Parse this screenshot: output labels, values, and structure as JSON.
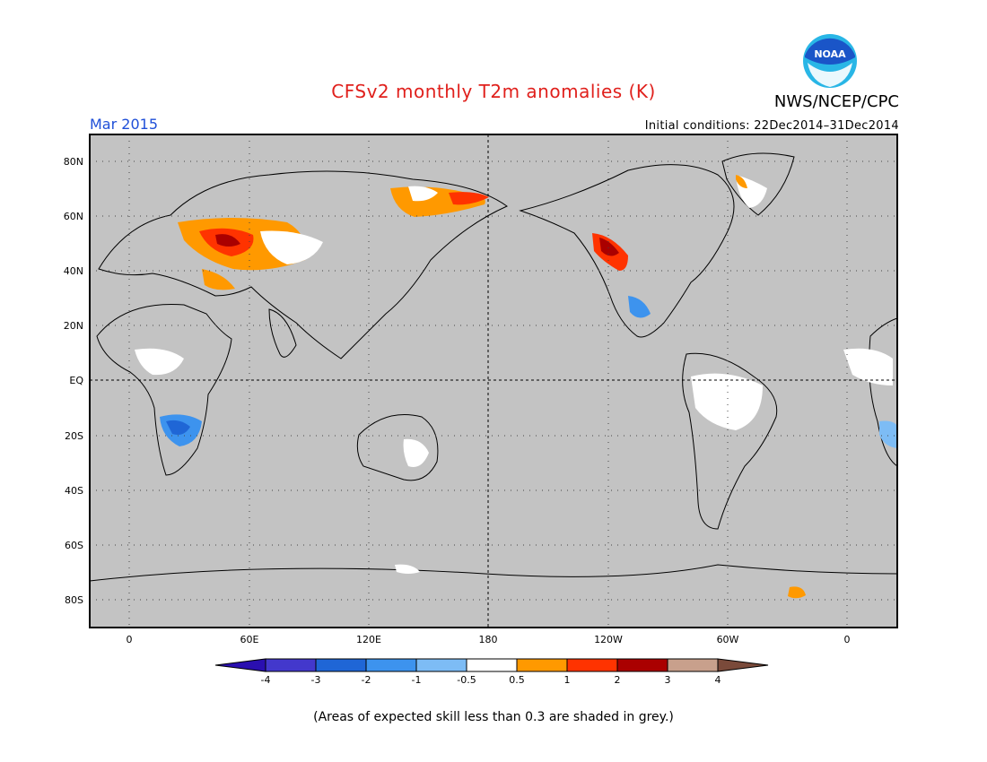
{
  "header": {
    "title": "CFSv2 monthly T2m anomalies (K)",
    "agency": "NWS/NCEP/CPC",
    "period": "Mar 2015",
    "initial_conditions": "Initial conditions: 22Dec2014–31Dec2014"
  },
  "logo": {
    "text": "NOAA",
    "color": "#1a55c8",
    "accent": "#29b6e6"
  },
  "map": {
    "lat_labels": [
      "80N",
      "60N",
      "40N",
      "20N",
      "EQ",
      "20S",
      "40S",
      "60S",
      "80S"
    ],
    "lon_labels": [
      "0",
      "60E",
      "120E",
      "180",
      "120W",
      "60W",
      "0"
    ],
    "background_color": "#c3c3c3",
    "land_color": "#c3c3c3"
  },
  "colorbar": {
    "labels": [
      "-4",
      "-3",
      "-2",
      "-1",
      "-0.5",
      "0.5",
      "1",
      "2",
      "3",
      "4"
    ],
    "colors": [
      "#2a0fb0",
      "#4338cc",
      "#1f66d6",
      "#3d93ee",
      "#7dbcf5",
      "#ffffff",
      "#ff9900",
      "#ff3300",
      "#aa0000",
      "#c8a08c",
      "#7a4a3a"
    ]
  },
  "footnote": "(Areas of expected skill less than 0.3 are shaded in grey.)"
}
